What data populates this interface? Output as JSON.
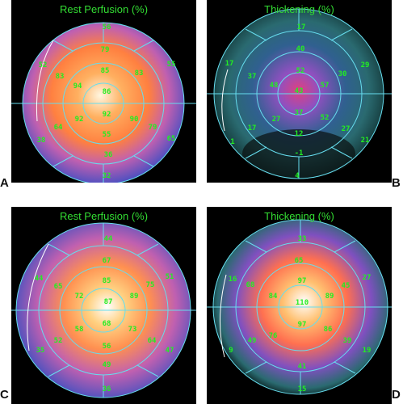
{
  "colors": {
    "label": "#22ee22",
    "title": "#33dd33",
    "grid": "#66ddee",
    "background": "#000000"
  },
  "panels": [
    {
      "id": "A",
      "title": "Rest Perfusion (%)",
      "letter": "A",
      "segments": {
        "s1": "56",
        "s2": "79",
        "s3": "85",
        "s4": "86",
        "s5": "83",
        "s6": "55",
        "s7": "52",
        "s8": "83",
        "s9": "94",
        "s10": "92",
        "s11": "92",
        "s12": "64",
        "s13": "55",
        "s14": "90",
        "s15": "79",
        "s16": "65",
        "s17": "38",
        "s18": "36",
        "s19": "32"
      }
    },
    {
      "id": "B",
      "title": "Thickening (%)",
      "letter": "B",
      "segments": {
        "s1": "17",
        "s2": "40",
        "s3": "52",
        "s4": "43",
        "s5": "30",
        "s6": "29",
        "s7": "17",
        "s8": "37",
        "s9": "48",
        "s10": "37",
        "s11": "57",
        "s12": "17",
        "s13": "12",
        "s14": "52",
        "s15": "27",
        "s16": "27",
        "s17": "1",
        "s18": "-1",
        "s19": "4",
        "s20": "21"
      }
    },
    {
      "id": "C",
      "title": "Rest Perfusion (%)",
      "letter": "C",
      "segments": {
        "s1": "44",
        "s2": "67",
        "s3": "85",
        "s4": "75",
        "s5": "51",
        "s6": "44",
        "s7": "65",
        "s8": "72",
        "s9": "87",
        "s10": "89",
        "s11": "68",
        "s12": "58",
        "s13": "52",
        "s14": "73",
        "s15": "64",
        "s16": "47",
        "s17": "35",
        "s18": "56",
        "s19": "49",
        "s20": "36"
      }
    },
    {
      "id": "D",
      "title": "Thickening (%)",
      "letter": "D",
      "segments": {
        "s1": "33",
        "s2": "65",
        "s3": "97",
        "s4": "45",
        "s5": "27",
        "s6": "16",
        "s7": "68",
        "s8": "84",
        "s9": "110",
        "s10": "89",
        "s11": "97",
        "s12": "49",
        "s13": "76",
        "s14": "86",
        "s15": "39",
        "s16": "19",
        "s17": "9",
        "s18": "41",
        "s19": "15"
      }
    }
  ]
}
